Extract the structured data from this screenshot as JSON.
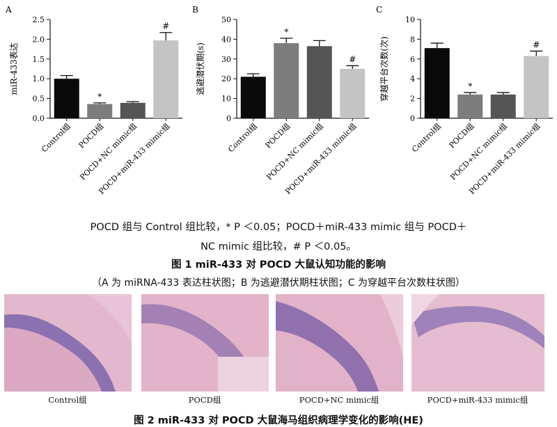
{
  "chart_data": [
    {
      "type": "bar",
      "panel_label": "A",
      "categories": [
        "Control组",
        "POCD组",
        "POCD+NC mimic组",
        "POCD+miR-433 mimic组"
      ],
      "values": [
        1.0,
        0.36,
        0.39,
        1.97
      ],
      "errors": [
        0.08,
        0.03,
        0.03,
        0.2
      ],
      "marks": [
        "",
        "*",
        "",
        "#"
      ],
      "colors": [
        "#0a0a0a",
        "#7d7d7d",
        "#555555",
        "#c4c4c4"
      ],
      "ylabel": "miR-433表达",
      "ylim": [
        0,
        2.5
      ],
      "yticks": [
        "0.0",
        "0.5",
        "1.0",
        "1.5",
        "2.0",
        "2.5"
      ]
    },
    {
      "type": "bar",
      "panel_label": "B",
      "categories": [
        "Control组",
        "POCD组",
        "POCD+NC mimic组",
        "POCD+miR-433 mimic组"
      ],
      "values": [
        21.0,
        38.0,
        36.5,
        25.0
      ],
      "errors": [
        1.5,
        2.5,
        2.8,
        1.6
      ],
      "marks": [
        "",
        "*",
        "",
        "#"
      ],
      "colors": [
        "#0a0a0a",
        "#7d7d7d",
        "#555555",
        "#c4c4c4"
      ],
      "ylabel": "逃避潜伏期(s)",
      "ylim": [
        0,
        50
      ],
      "yticks": [
        "0",
        "10",
        "20",
        "30",
        "40",
        "50"
      ]
    },
    {
      "type": "bar",
      "panel_label": "C",
      "categories": [
        "Control组",
        "POCD组",
        "POCD+NC mimic组",
        "POCD+miR-433 mimic组"
      ],
      "values": [
        7.1,
        2.4,
        2.4,
        6.3
      ],
      "errors": [
        0.5,
        0.2,
        0.2,
        0.5
      ],
      "marks": [
        "",
        "*",
        "",
        "#"
      ],
      "colors": [
        "#0a0a0a",
        "#7d7d7d",
        "#555555",
        "#c4c4c4"
      ],
      "ylabel": "穿越平台次数(次)",
      "ylim": [
        0,
        10
      ],
      "yticks": [
        "0",
        "2",
        "4",
        "6",
        "8",
        "10"
      ]
    }
  ],
  "figure1": {
    "note_line1": "POCD 组与 Control 组比较，* P ＜0.05；POCD＋miR-433 mimic 组与 POCD＋",
    "note_line2": "NC mimic 组比较，# P ＜0.05。",
    "title": "图 1   miR-433 对 POCD 大鼠认知功能的影响",
    "subtitle": "（A 为 miRNA-433 表达柱状图；B 为逃避潜伏期柱状图；C 为穿越平台次数柱状图）"
  },
  "figure2": {
    "panels": [
      "Control组",
      "POCD组",
      "POCD+NC mimic组",
      "POCD+miR-433 mimic组"
    ],
    "title": "图 2   miR-433 对 POCD 大鼠海马组织病理学变化的影响(HE)"
  }
}
